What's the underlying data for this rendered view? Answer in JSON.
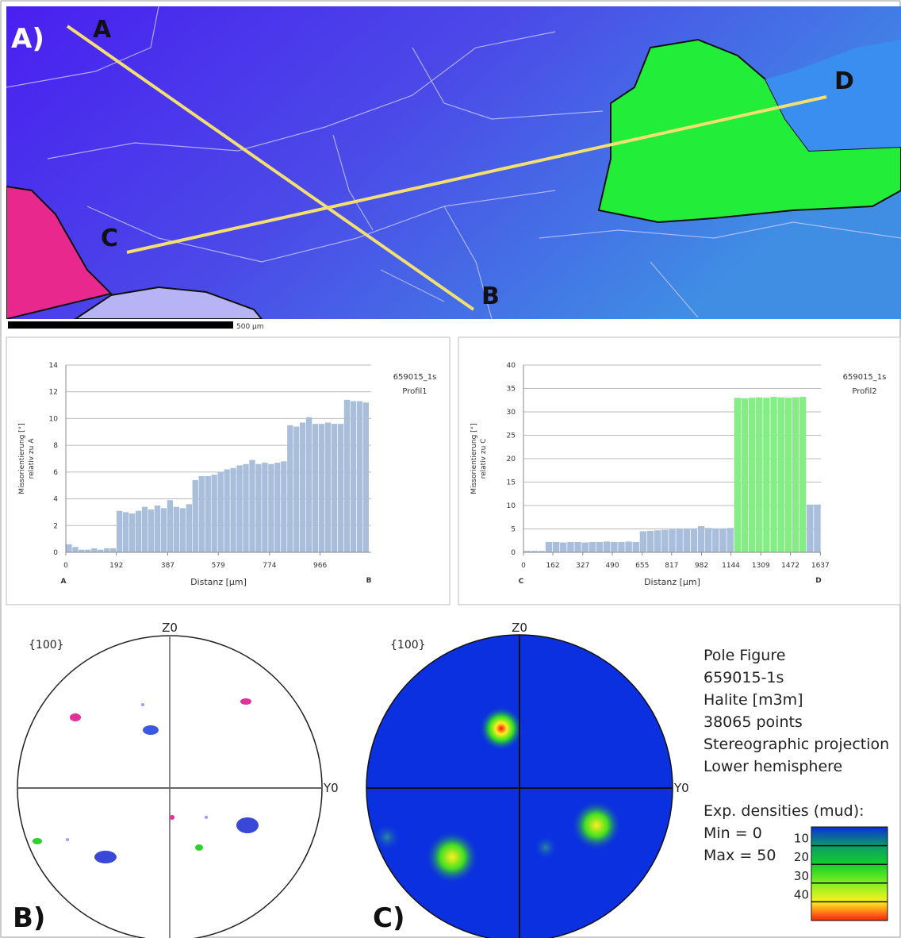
{
  "panel_a": {
    "label": "A)",
    "points": [
      "A",
      "B",
      "C",
      "D"
    ],
    "scale_bar": "500 µm"
  },
  "chart_data": [
    {
      "type": "bar",
      "title": "659015_1s",
      "subtitle": "Profil1",
      "y_label": [
        "Missorientierung [°]",
        "relativ zu A"
      ],
      "x_label": "Distanz [µm]",
      "start_label": "A",
      "end_label": "B",
      "x": [
        12,
        36,
        60,
        84,
        108,
        132,
        156,
        180,
        204,
        228,
        252,
        276,
        300,
        324,
        348,
        372,
        396,
        420,
        444,
        468,
        492,
        516,
        540,
        564,
        588,
        612,
        636,
        660,
        684,
        708,
        732,
        756,
        780,
        804,
        828,
        852,
        876,
        900,
        924,
        948,
        972,
        996,
        1020,
        1044,
        1068,
        1092,
        1116,
        1140
      ],
      "series": [
        {
          "color": "#a8bedb",
          "values": [
            0.6,
            0.4,
            0.2,
            0.2,
            0.3,
            0.2,
            0.3,
            0.3,
            3.1,
            3.0,
            2.9,
            3.1,
            3.4,
            3.2,
            3.5,
            3.3,
            3.9,
            3.4,
            3.3,
            3.6,
            5.4,
            5.7,
            5.7,
            5.8,
            6.0,
            6.2,
            6.3,
            6.5,
            6.6,
            6.9,
            6.6,
            6.7,
            6.6,
            6.7,
            6.8,
            9.5,
            9.4,
            9.7,
            10.1,
            9.6,
            9.6,
            9.7,
            9.6,
            9.6,
            11.4,
            11.3,
            11.3,
            11.2
          ]
        }
      ],
      "xlim": [
        0,
        1160
      ],
      "xticks": [
        0,
        192,
        387,
        579,
        774,
        966
      ],
      "ylim": [
        0,
        14
      ],
      "yticks": [
        0,
        2,
        4,
        6,
        8,
        10,
        12,
        14
      ],
      "grid": true
    },
    {
      "type": "bar",
      "title": "659015_1s",
      "subtitle": "Profil2",
      "y_label": [
        "Missorientierung [°]",
        "relativ zu C"
      ],
      "x_label": "Distanz [µm]",
      "start_label": "C",
      "end_label": "D",
      "x": [
        20,
        60,
        100,
        140,
        180,
        220,
        260,
        300,
        340,
        380,
        420,
        460,
        500,
        540,
        580,
        620,
        660,
        700,
        740,
        780,
        820,
        860,
        900,
        940,
        980,
        1020,
        1060,
        1100,
        1140,
        1180,
        1220,
        1260,
        1300,
        1340,
        1380,
        1420,
        1460,
        1500,
        1540,
        1580,
        1620
      ],
      "series": [
        {
          "color": "#a8bedb",
          "values": [
            0.3,
            0.3,
            0.3,
            2.2,
            2.2,
            2.1,
            2.2,
            2.2,
            2.1,
            2.2,
            2.2,
            2.3,
            2.2,
            2.2,
            2.3,
            2.2,
            4.5,
            4.6,
            4.7,
            4.8,
            4.9,
            5.0,
            5.0,
            5.1,
            5.6,
            5.2,
            5.1,
            5.1,
            5.2,
            null,
            null,
            null,
            null,
            null,
            null,
            null,
            null,
            null,
            null,
            10.2,
            10.2
          ]
        },
        {
          "color": "#84ee84",
          "values": [
            null,
            null,
            null,
            null,
            null,
            null,
            null,
            null,
            null,
            null,
            null,
            null,
            null,
            null,
            null,
            null,
            null,
            null,
            null,
            null,
            null,
            null,
            null,
            null,
            null,
            null,
            null,
            null,
            null,
            33.0,
            32.9,
            33.0,
            33.1,
            33.0,
            33.2,
            33.1,
            33.0,
            33.1,
            33.2,
            null,
            null
          ]
        }
      ],
      "xlim": [
        0,
        1640
      ],
      "xticks": [
        0,
        162,
        327,
        490,
        655,
        817,
        982,
        1144,
        1309,
        1472,
        1637
      ],
      "ylim": [
        0,
        40
      ],
      "yticks": [
        0,
        5,
        10,
        15,
        20,
        25,
        30,
        35,
        40
      ],
      "grid": true
    }
  ],
  "panel_b": {
    "label": "B)",
    "plane": "{100}",
    "z_axis": "Z0",
    "y_axis": "Y0"
  },
  "panel_c": {
    "label": "C)",
    "plane": "{100}",
    "z_axis": "Z0",
    "y_axis": "Y0",
    "info": [
      "Pole Figure",
      "659015-1s",
      "Halite [m3m]",
      "38065 points",
      "Stereographic projection",
      "Lower hemisphere"
    ],
    "legend_title": "Exp. densities (mud):",
    "min_label": "Min = 0",
    "max_label": "Max = 50",
    "colorbar": {
      "lim": [
        0,
        50
      ],
      "ticks": [
        10,
        20,
        30,
        40
      ]
    }
  }
}
